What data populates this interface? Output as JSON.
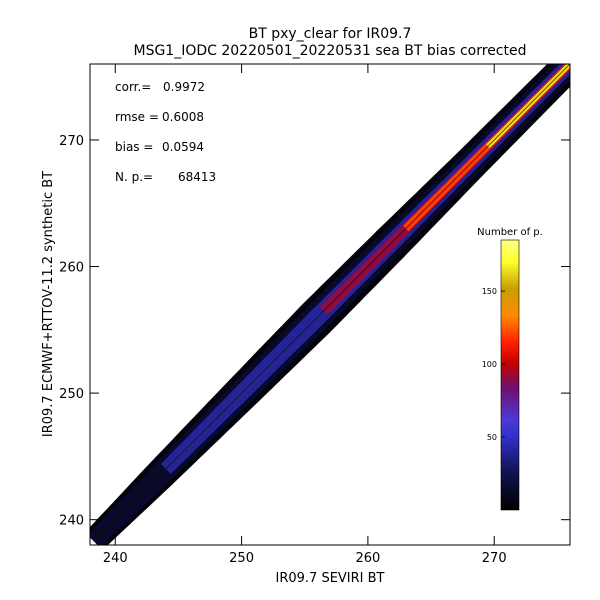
{
  "chart_data": {
    "type": "heatmap",
    "title": "BT pxy_clear for IR09.7",
    "subtitle": "MSG1_IODC 20220501_20220531 sea BT bias corrected",
    "xlabel": "IR09.7 SEVIRI BT",
    "ylabel": "IR09.7 ECMWF+RTTOV-11.2 synthetic BT",
    "xlim": [
      238,
      276
    ],
    "ylim": [
      238,
      276
    ],
    "x_ticks": [
      240,
      250,
      260,
      270
    ],
    "y_ticks": [
      240,
      250,
      260,
      270
    ],
    "stats": [
      {
        "label": "corr.=",
        "value": "0.9972"
      },
      {
        "label": "rmse =",
        "value": "0.6008"
      },
      {
        "label": "bias =",
        "value": "0.0594"
      },
      {
        "label": "N. p.=",
        "value": "68413"
      }
    ],
    "colorbar": {
      "title": "Number of p.",
      "range": [
        0,
        185
      ],
      "ticks": [
        50,
        100,
        150
      ]
    },
    "density": {
      "diagonal": [
        [
          238.3,
          238.3
        ],
        [
          276,
          276
        ]
      ],
      "band_halfwidth_bt": [
        [
          238.5,
          0.7
        ],
        [
          243,
          0.85
        ],
        [
          250,
          1.0
        ],
        [
          256,
          1.1
        ],
        [
          262,
          1.05
        ],
        [
          268,
          0.95
        ],
        [
          275.5,
          0.9
        ]
      ],
      "core": [
        {
          "x_start": 256.5,
          "x_end": 276,
          "level": 90
        },
        {
          "x_start": 263,
          "x_end": 276,
          "level": 120
        },
        {
          "x_start": 269.5,
          "x_end": 276,
          "level": 165
        }
      ]
    },
    "grid": false,
    "legend": "colorbar-right"
  }
}
